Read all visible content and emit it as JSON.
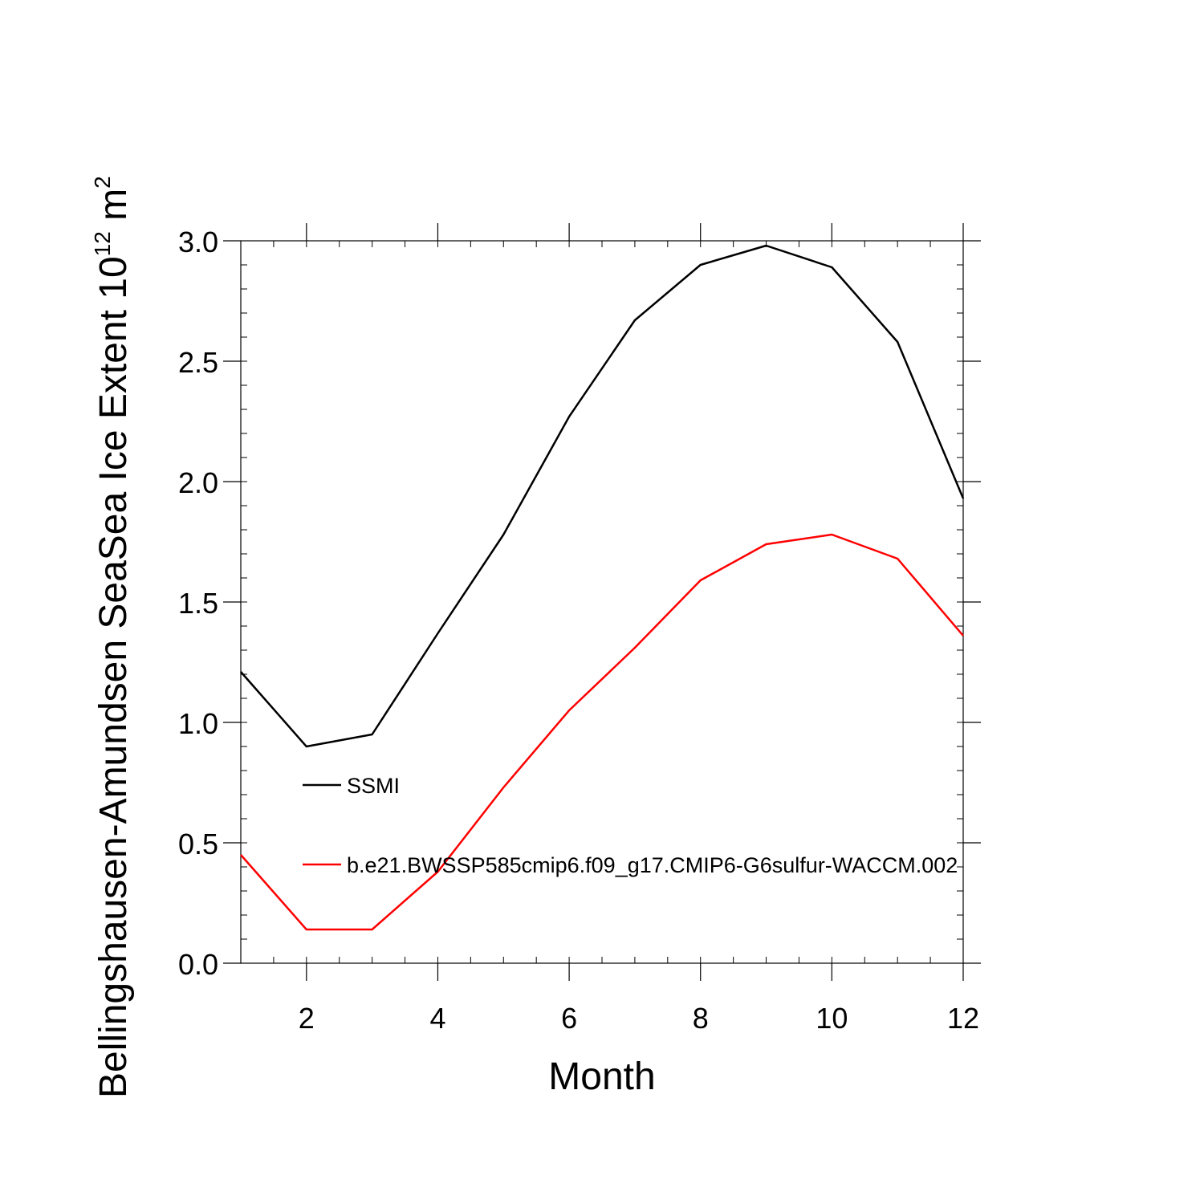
{
  "chart_data": {
    "type": "line",
    "title": "",
    "xlabel": "Month",
    "ylabel": {
      "main": "Bellingshausen-Amundsen SeaSea Ice Extent 10",
      "exponent": "12",
      "unit": " m",
      "unit_exponent": "2"
    },
    "xlim": [
      1,
      12
    ],
    "ylim": [
      0,
      3
    ],
    "x_ticks": [
      2,
      4,
      6,
      8,
      10,
      12
    ],
    "x_tick_labels": [
      "2",
      "4",
      "6",
      "8",
      "10",
      "12"
    ],
    "y_ticks": [
      0,
      0.5,
      1,
      1.5,
      2,
      2.5,
      3
    ],
    "y_tick_labels": [
      "0.0",
      "0.5",
      "1.0",
      "1.5",
      "2.0",
      "2.5",
      "3.0"
    ],
    "x": [
      1,
      2,
      3,
      4,
      5,
      6,
      7,
      8,
      9,
      10,
      11,
      12
    ],
    "series": [
      {
        "name": "SSMI",
        "color": "#000000",
        "values": [
          1.21,
          0.9,
          0.95,
          1.37,
          1.78,
          2.27,
          2.67,
          2.9,
          2.98,
          2.89,
          2.58,
          1.93
        ]
      },
      {
        "name": "b.e21.BWSSP585cmip6.f09_g17.CMIP6-G6sulfur-WACCM.002",
        "color": "#ff0000",
        "values": [
          0.45,
          0.14,
          0.14,
          0.38,
          0.73,
          1.05,
          1.31,
          1.59,
          1.74,
          1.78,
          1.68,
          1.36
        ]
      }
    ],
    "legend_position": "inside-lower-left",
    "grid": false
  }
}
